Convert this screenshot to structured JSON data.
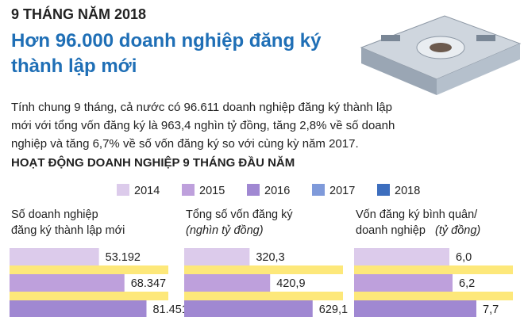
{
  "header": {
    "kicker": "9 THÁNG NĂM 2018",
    "title": "Hơn 96.000 doanh nghiệp đăng ký thành lập mới",
    "summary": "Tính chung 9 tháng, cả nước có 96.611 doanh nghiệp đăng ký thành lập mới với tổng vốn đăng ký là 963,4 nghìn tỷ đồng, tăng 2,8% về số doanh nghiệp và tăng 6,7% về số vốn đăng ký so với cùng kỳ năm 2017.",
    "section": "HOẠT ĐỘNG DOANH NGHIỆP 9 THÁNG ĐẦU NĂM"
  },
  "legend": [
    {
      "name": "2014",
      "color": "#dccbeb"
    },
    {
      "name": "2015",
      "color": "#bea0dc"
    },
    {
      "name": "2016",
      "color": "#a088d2"
    },
    {
      "name": "2017",
      "color": "#7f9ada"
    },
    {
      "name": "2018",
      "color": "#3d6ebe"
    }
  ],
  "chart_data": [
    {
      "type": "bar",
      "title": "Số doanh nghiệp",
      "subtitle": "đăng ký thành lập mới",
      "categories": [
        "2014",
        "2015",
        "2016"
      ],
      "values": [
        53192,
        68347,
        81451
      ],
      "value_labels": [
        "53.192",
        "68.347",
        "81.451"
      ],
      "colors": [
        "#dccbeb",
        "#bea0dc",
        "#a088d2"
      ],
      "xlim": [
        0,
        85000
      ]
    },
    {
      "type": "bar",
      "title": "Tổng số vốn đăng ký",
      "subtitle": "(nghìn tỷ đồng)",
      "categories": [
        "2014",
        "2015",
        "2016"
      ],
      "values": [
        320.3,
        420.9,
        629.1
      ],
      "value_labels": [
        "320,3",
        "420,9",
        "629,1"
      ],
      "colors": [
        "#dccbeb",
        "#bea0dc",
        "#a088d2"
      ],
      "xlim": [
        0,
        700
      ]
    },
    {
      "type": "bar",
      "title": "Vốn đăng ký bình quân/",
      "subtitle": "doanh nghiệp",
      "subtitle_note": "(tỷ đồng)",
      "categories": [
        "2014",
        "2015",
        "2016"
      ],
      "values": [
        6.0,
        6.2,
        7.7
      ],
      "value_labels": [
        "6,0",
        "6,2",
        "7,7"
      ],
      "colors": [
        "#dccbeb",
        "#bea0dc",
        "#a088d2"
      ],
      "xlim": [
        0,
        9
      ]
    }
  ]
}
